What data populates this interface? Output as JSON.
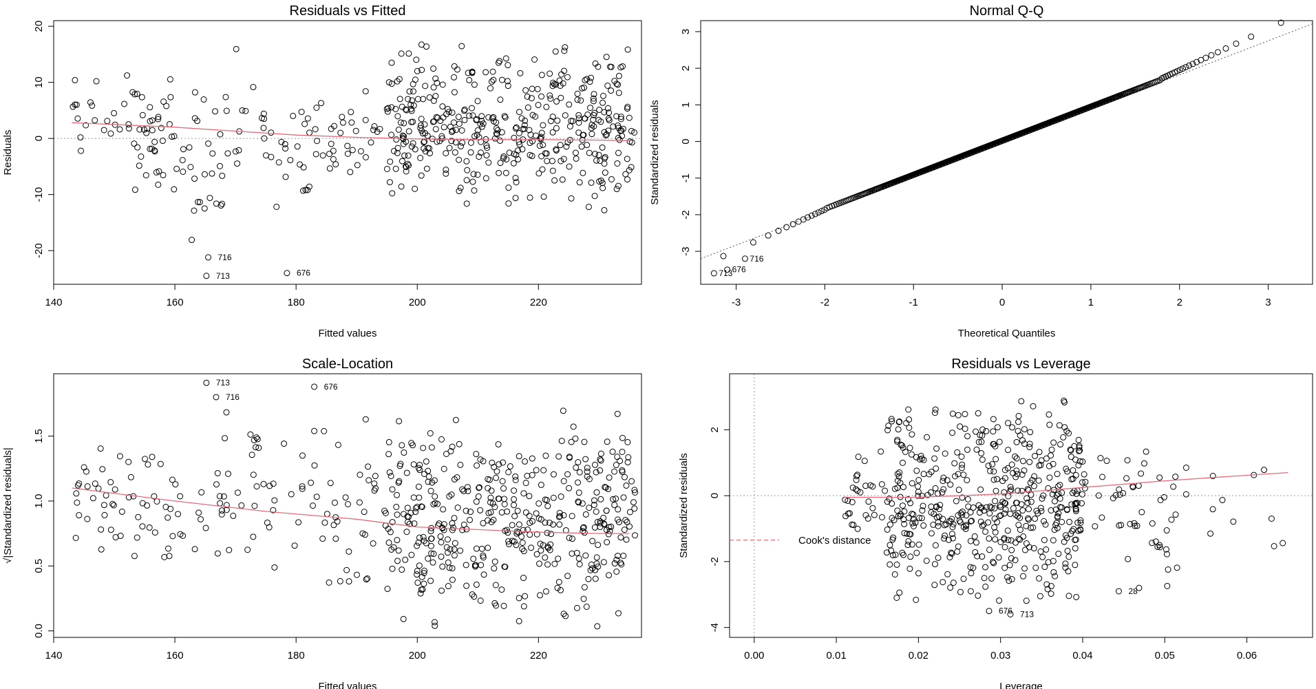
{
  "chart_data": [
    {
      "type": "scatter",
      "title": "Residuals vs Fitted",
      "xlabel": "Fitted values",
      "ylabel": "Residuals",
      "xlim": [
        140,
        237
      ],
      "ylim": [
        -26,
        21
      ],
      "xticks": [
        "140",
        "160",
        "180",
        "200",
        "220"
      ],
      "yticks": [
        "-20",
        "-10",
        "0",
        "10",
        "20"
      ],
      "reference_line_y": 0,
      "smooth_line": {
        "x": [
          143,
          150,
          160,
          170,
          180,
          190,
          200,
          210,
          220,
          230,
          235
        ],
        "y": [
          2.8,
          2.5,
          2.0,
          1.3,
          0.6,
          0.2,
          -0.1,
          -0.2,
          -0.2,
          -0.3,
          -0.4
        ]
      },
      "labeled_points": [
        {
          "label": "716",
          "x": 165.5,
          "y": -21.2
        },
        {
          "label": "713",
          "x": 165.2,
          "y": -24.5
        },
        {
          "label": "676",
          "x": 178.5,
          "y": -24.0
        }
      ],
      "point_clusters": [
        {
          "x": [
            143,
            153
          ],
          "y": [
            -3,
            12
          ],
          "n": 22
        },
        {
          "x": [
            153,
            160
          ],
          "y": [
            -12,
            14
          ],
          "n": 40
        },
        {
          "x": [
            160,
            168
          ],
          "y": [
            -19,
            10
          ],
          "n": 28
        },
        {
          "x": [
            168,
            175
          ],
          "y": [
            -7,
            17
          ],
          "n": 16
        },
        {
          "x": [
            175,
            184
          ],
          "y": [
            -17,
            8
          ],
          "n": 26
        },
        {
          "x": [
            184,
            195
          ],
          "y": [
            -10,
            10
          ],
          "n": 30
        },
        {
          "x": [
            195,
            236
          ],
          "y": [
            -13,
            17
          ],
          "n": 430
        }
      ]
    },
    {
      "type": "scatter",
      "title": "Normal Q-Q",
      "xlabel": "Theoretical Quantiles",
      "ylabel": "Standardized residuals",
      "xlim": [
        -3.4,
        3.5
      ],
      "ylim": [
        -3.9,
        3.3
      ],
      "xticks": [
        "-3",
        "-2",
        "-1",
        "0",
        "1",
        "2",
        "3"
      ],
      "yticks": [
        "-3",
        "-2",
        "-1",
        "0",
        "1",
        "2",
        "3"
      ],
      "n_points": 600,
      "labeled_points": [
        {
          "label": "716",
          "x": -2.9,
          "y": -3.2
        },
        {
          "label": "676",
          "x": -3.1,
          "y": -3.5
        },
        {
          "label": "713",
          "x": -3.25,
          "y": -3.6
        }
      ]
    },
    {
      "type": "scatter",
      "title": "Scale-Location",
      "xlabel": "Fitted values",
      "ylabel": "√|Standardized residuals|",
      "xlim": [
        140,
        237
      ],
      "ylim": [
        -0.05,
        1.98
      ],
      "xticks": [
        "140",
        "160",
        "180",
        "200",
        "220"
      ],
      "yticks": [
        "0.0",
        "0.5",
        "1.0",
        "1.5"
      ],
      "smooth_line": {
        "x": [
          143,
          160,
          175,
          190,
          200,
          210,
          220,
          230,
          235
        ],
        "y": [
          1.1,
          1.0,
          0.92,
          0.86,
          0.8,
          0.78,
          0.76,
          0.75,
          0.75
        ]
      },
      "labeled_points": [
        {
          "label": "713",
          "x": 165.2,
          "y": 1.91
        },
        {
          "label": "716",
          "x": 166.8,
          "y": 1.8
        },
        {
          "label": "676",
          "x": 183.0,
          "y": 1.88
        }
      ],
      "point_clusters": [
        {
          "x": [
            143,
            160
          ],
          "y": [
            0.3,
            1.55
          ],
          "n": 55
        },
        {
          "x": [
            160,
            175
          ],
          "y": [
            0.4,
            1.7
          ],
          "n": 40
        },
        {
          "x": [
            175,
            195
          ],
          "y": [
            0.12,
            1.66
          ],
          "n": 56
        },
        {
          "x": [
            195,
            236
          ],
          "y": [
            0.03,
            1.71
          ],
          "n": 440
        }
      ]
    },
    {
      "type": "scatter",
      "title": "Residuals vs Leverage",
      "xlabel": "Leverage",
      "ylabel": "Standardized residuals",
      "xlim": [
        -0.003,
        0.068
      ],
      "ylim": [
        -4.3,
        3.7
      ],
      "xticks": [
        "0.00",
        "0.01",
        "0.02",
        "0.03",
        "0.04",
        "0.05",
        "0.06"
      ],
      "yticks": [
        "-4",
        "-2",
        "0",
        "2"
      ],
      "reference_line_y": 0,
      "reference_line_x": 0,
      "legend": "Cook's distance",
      "smooth_line": {
        "x": [
          0.011,
          0.02,
          0.03,
          0.04,
          0.05,
          0.06,
          0.065
        ],
        "y": [
          -0.05,
          -0.05,
          0.05,
          0.25,
          0.45,
          0.62,
          0.7
        ]
      },
      "labeled_points": [
        {
          "label": "676",
          "x": 0.0286,
          "y": -3.5
        },
        {
          "label": "713",
          "x": 0.0312,
          "y": -3.6
        },
        {
          "label": "28",
          "x": 0.0444,
          "y": -2.9
        }
      ],
      "point_clusters": [
        {
          "x": [
            0.011,
            0.016
          ],
          "y": [
            -1.5,
            1.4
          ],
          "n": 30
        },
        {
          "x": [
            0.016,
            0.04
          ],
          "y": [
            -3.2,
            2.9
          ],
          "n": 500
        },
        {
          "x": [
            0.04,
            0.052
          ],
          "y": [
            -2.9,
            1.9
          ],
          "n": 50
        },
        {
          "x": [
            0.052,
            0.066
          ],
          "y": [
            -1.7,
            1.6
          ],
          "n": 12
        }
      ]
    }
  ]
}
